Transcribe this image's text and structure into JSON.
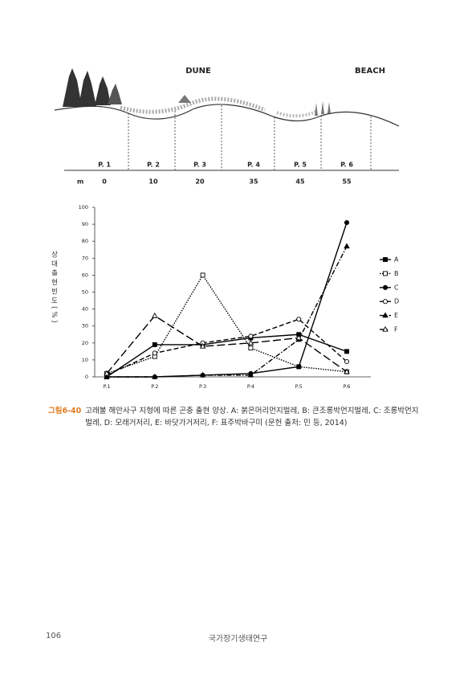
{
  "diagram": {
    "zones": [
      "DUNE",
      "BEACH"
    ],
    "plots": [
      "P. 1",
      "P. 2",
      "P. 3",
      "P. 4",
      "P. 5",
      "P. 6"
    ],
    "distance_unit": "m",
    "distances": [
      0,
      10,
      20,
      35,
      45,
      55
    ]
  },
  "chart_data": {
    "type": "line",
    "y_label": "상대출현빈도(%)",
    "categories": [
      "P.1",
      "P.2",
      "P.3",
      "P.4",
      "P.5",
      "P.6"
    ],
    "ylim": [
      0,
      100
    ],
    "yticks": [
      0,
      10,
      20,
      30,
      40,
      50,
      60,
      70,
      80,
      90,
      100
    ],
    "legend": "right",
    "series": [
      {
        "name": "A",
        "color": "#000000",
        "dash": "solid",
        "marker": "square-filled",
        "values": [
          0,
          19,
          19,
          23,
          25,
          15
        ]
      },
      {
        "name": "B",
        "color": "#000000",
        "dash": "dotted",
        "marker": "square-open",
        "values": [
          2,
          12,
          60,
          17,
          6,
          3
        ]
      },
      {
        "name": "C",
        "color": "#000000",
        "dash": "solid",
        "marker": "circle-filled",
        "values": [
          0,
          0,
          1,
          2,
          6,
          91
        ]
      },
      {
        "name": "D",
        "color": "#000000",
        "dash": "dashed",
        "marker": "circle-open",
        "values": [
          1,
          14,
          20,
          24,
          34,
          9
        ]
      },
      {
        "name": "E",
        "color": "#000000",
        "dash": "dashdot",
        "marker": "triangle-filled",
        "values": [
          0,
          0,
          1,
          1,
          22,
          77
        ]
      },
      {
        "name": "F",
        "color": "#000000",
        "dash": "longdash",
        "marker": "triangle-open",
        "values": [
          2,
          36,
          18,
          20,
          23,
          3
        ]
      }
    ]
  },
  "caption": {
    "label": "그림6-40",
    "text": "고래불 해안사구 지형에 따른 곤충 출현 양상. A: 붉은머리먼지벌레, B: 큰조롱박먼지벌레, C: 조롱박먼지벌레, D: 모래거저리, E: 바닷가거저리, F: 표주박바구미 (문헌 출처: 민 등, 2014)"
  },
  "footer": {
    "page": "106",
    "title": "국가장기생태연구"
  }
}
